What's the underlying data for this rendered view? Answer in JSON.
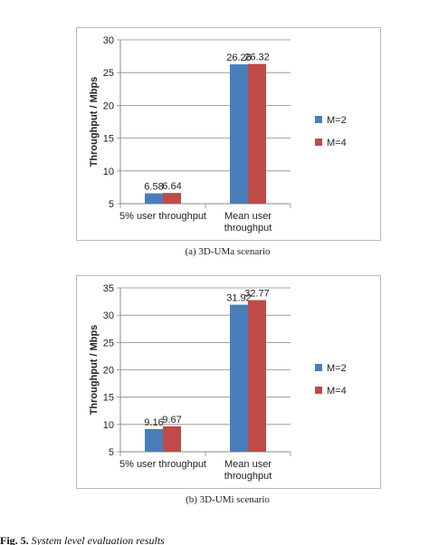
{
  "chart_data": [
    {
      "type": "bar",
      "categories": [
        "5% user throughput",
        "Mean user throughput"
      ],
      "category_lines": [
        [
          "5% user throughput"
        ],
        [
          "Mean user",
          "throughput"
        ]
      ],
      "series": [
        {
          "name": "M=2",
          "values": [
            6.58,
            26.26
          ],
          "color": "#4a7ebb"
        },
        {
          "name": "M=4",
          "values": [
            6.64,
            26.32
          ],
          "color": "#be4b48"
        }
      ],
      "ylabel": "Throughput / Mbps",
      "xlabel": "",
      "ylim": [
        5,
        30
      ],
      "yticks": [
        5,
        10,
        15,
        20,
        25,
        30
      ],
      "grid": true,
      "legend": "right",
      "caption": "(a) 3D-UMa scenario"
    },
    {
      "type": "bar",
      "categories": [
        "5% user throughput",
        "Mean user throughput"
      ],
      "category_lines": [
        [
          "5% user throughput"
        ],
        [
          "Mean user",
          "throughput"
        ]
      ],
      "series": [
        {
          "name": "M=2",
          "values": [
            9.16,
            31.92
          ],
          "color": "#4a7ebb"
        },
        {
          "name": "M=4",
          "values": [
            9.67,
            32.77
          ],
          "color": "#be4b48"
        }
      ],
      "ylabel": "Throughput / Mbps",
      "xlabel": "",
      "ylim": [
        5,
        35
      ],
      "yticks": [
        5,
        10,
        15,
        20,
        25,
        30,
        35
      ],
      "grid": true,
      "legend": "right",
      "caption": "(b) 3D-UMi scenario"
    }
  ],
  "figure_caption": {
    "label": "Fig. 5.",
    "text": "System level evaluation results"
  }
}
